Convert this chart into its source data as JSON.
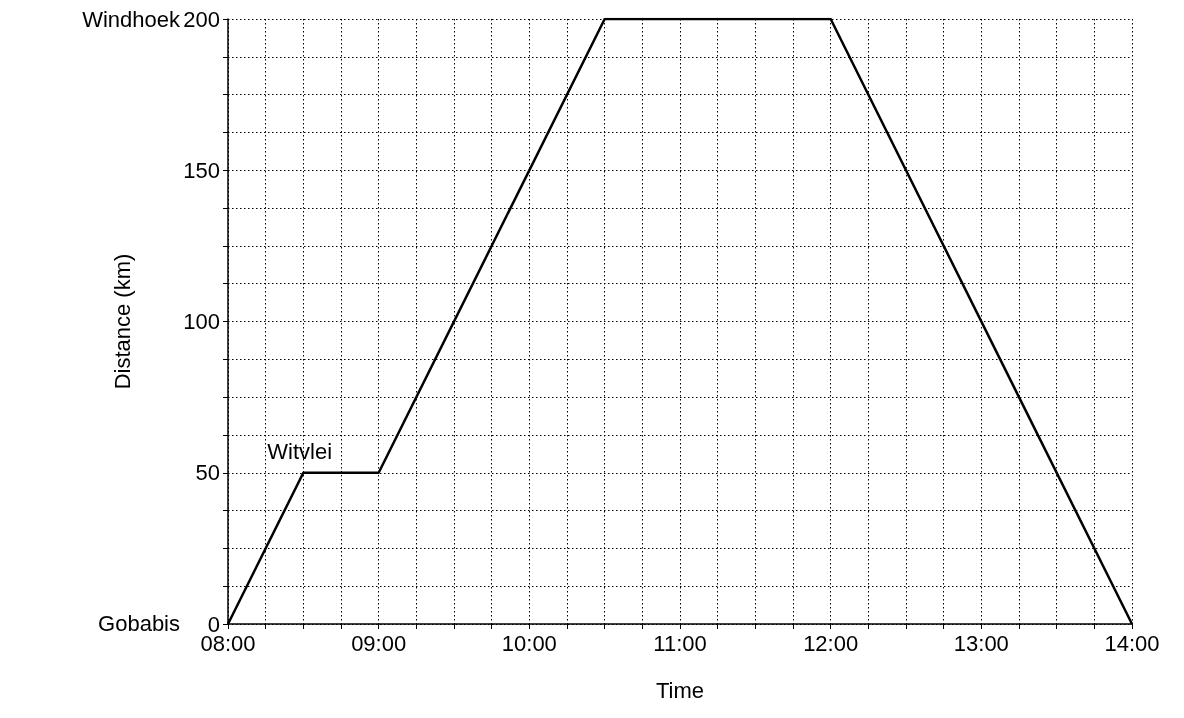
{
  "chart_data": {
    "type": "line",
    "xlabel": "Time",
    "ylabel": "Distance (km)",
    "x": [
      8,
      8.5,
      9,
      10.5,
      12,
      14
    ],
    "series": [
      {
        "color": "#000000",
        "values": [
          0,
          50,
          50,
          200,
          200,
          0
        ]
      }
    ],
    "xlim": [
      8,
      14
    ],
    "ylim": [
      0,
      200
    ],
    "xticks": [
      {
        "value": 8,
        "label": "08:00"
      },
      {
        "value": 8.25,
        "label": null
      },
      {
        "value": 8.5,
        "label": null
      },
      {
        "value": 8.75,
        "label": null
      },
      {
        "value": 9,
        "label": "09:00"
      },
      {
        "value": 9.25,
        "label": null
      },
      {
        "value": 9.5,
        "label": null
      },
      {
        "value": 9.75,
        "label": null
      },
      {
        "value": 10,
        "label": "10:00"
      },
      {
        "value": 10.25,
        "label": null
      },
      {
        "value": 10.5,
        "label": null
      },
      {
        "value": 10.75,
        "label": null
      },
      {
        "value": 11,
        "label": "11:00"
      },
      {
        "value": 11.25,
        "label": null
      },
      {
        "value": 11.5,
        "label": null
      },
      {
        "value": 11.75,
        "label": null
      },
      {
        "value": 12,
        "label": "12:00"
      },
      {
        "value": 12.25,
        "label": null
      },
      {
        "value": 12.5,
        "label": null
      },
      {
        "value": 12.75,
        "label": null
      },
      {
        "value": 13,
        "label": "13:00"
      },
      {
        "value": 13.25,
        "label": null
      },
      {
        "value": 13.5,
        "label": null
      },
      {
        "value": 13.75,
        "label": null
      },
      {
        "value": 14,
        "label": "14:00"
      }
    ],
    "yticks": [
      0,
      {
        "value": 12.5,
        "label": null
      },
      {
        "value": 25,
        "label": null
      },
      {
        "value": 37.5,
        "label": null
      },
      50,
      {
        "value": 62.5,
        "label": null
      },
      {
        "value": 75,
        "label": null
      },
      {
        "value": 87.5,
        "label": null
      },
      100,
      {
        "value": 112.5,
        "label": null
      },
      {
        "value": 125,
        "label": null
      },
      {
        "value": 137.5,
        "label": null
      },
      150,
      {
        "value": 162.5,
        "label": null
      },
      {
        "value": 175,
        "label": null
      },
      {
        "value": 187.5,
        "label": null
      },
      200
    ],
    "annotations": [
      "Windhoek",
      "Gobabis",
      {
        "text": "Witvlei",
        "x": 8.5,
        "y": 50
      }
    ],
    "grid": true,
    "marker": "none",
    "line_style": "solid"
  }
}
